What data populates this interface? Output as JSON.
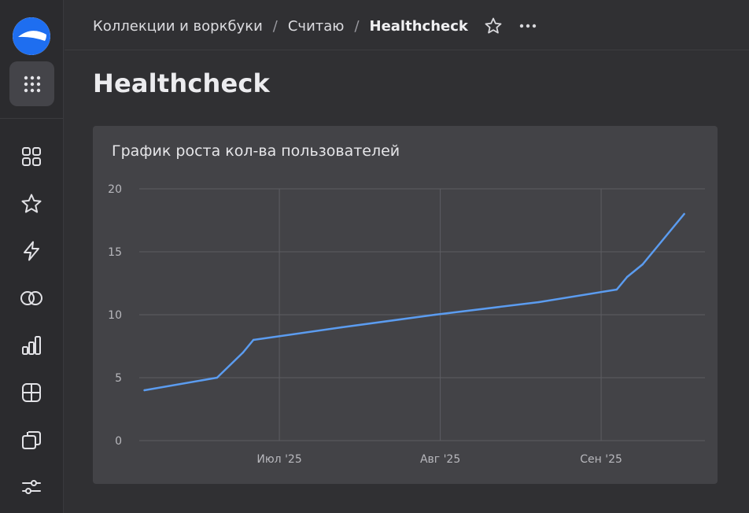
{
  "breadcrumbs": {
    "items": [
      "Коллекции и воркбуки",
      "Считаю",
      "Healthcheck"
    ],
    "separator": "/"
  },
  "page": {
    "title": "Healthcheck"
  },
  "sidebar": {
    "icons": [
      "apps-grid-icon",
      "dashboards-icon",
      "favorites-star-icon",
      "connections-bolt-icon",
      "datasets-rings-icon",
      "charts-bars-icon",
      "tables-icon",
      "workbooks-icon",
      "settings-sliders-icon"
    ]
  },
  "colors": {
    "background": "#303033",
    "card": "#434347",
    "line": "#5b9cf0",
    "logo_blue": "#1e6ef0"
  },
  "chart_data": {
    "type": "line",
    "title": "График роста кол-ва пользователей",
    "xlabel": "",
    "ylabel": "",
    "ylim": [
      0,
      20
    ],
    "yticks": [
      0,
      5,
      10,
      15,
      20
    ],
    "x_ticks": [
      {
        "date": "2025-07-01",
        "label": "Июл '25"
      },
      {
        "date": "2025-08-01",
        "label": "Авг '25"
      },
      {
        "date": "2025-09-01",
        "label": "Сен '25"
      }
    ],
    "xlim": [
      "2025-06-04",
      "2025-09-21"
    ],
    "grid": true,
    "legend": "none",
    "series": [
      {
        "name": "",
        "points": [
          {
            "x": "2025-06-05",
            "y": 4
          },
          {
            "x": "2025-06-19",
            "y": 5
          },
          {
            "x": "2025-06-24",
            "y": 7
          },
          {
            "x": "2025-06-26",
            "y": 8
          },
          {
            "x": "2025-07-13",
            "y": 9
          },
          {
            "x": "2025-07-31",
            "y": 10
          },
          {
            "x": "2025-08-20",
            "y": 11
          },
          {
            "x": "2025-09-04",
            "y": 12
          },
          {
            "x": "2025-09-06",
            "y": 13
          },
          {
            "x": "2025-09-09",
            "y": 14
          },
          {
            "x": "2025-09-17",
            "y": 18
          }
        ]
      }
    ]
  }
}
